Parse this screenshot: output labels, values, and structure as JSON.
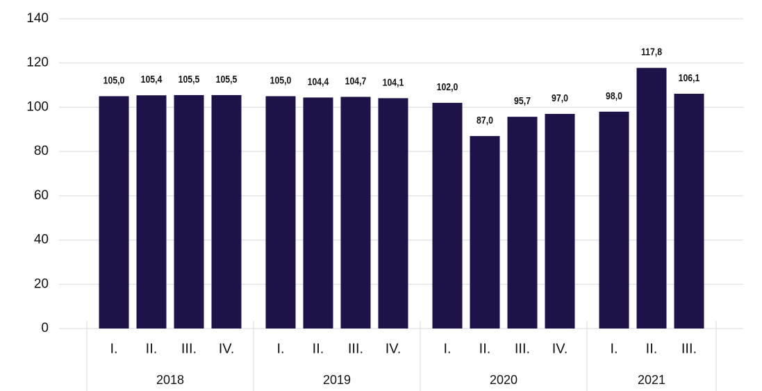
{
  "chart_data": {
    "type": "bar",
    "color": "#1e1248",
    "ylim": [
      0,
      140
    ],
    "yticks": [
      0,
      20,
      40,
      60,
      80,
      100,
      120,
      140
    ],
    "grid": true,
    "groups": [
      {
        "name": "2018",
        "categories": [
          "I.",
          "II.",
          "III.",
          "IV."
        ],
        "values": [
          105.0,
          105.4,
          105.5,
          105.5
        ],
        "value_labels": [
          "105,0",
          "105,4",
          "105,5",
          "105,5"
        ]
      },
      {
        "name": "2019",
        "categories": [
          "I.",
          "II.",
          "III.",
          "IV."
        ],
        "values": [
          105.0,
          104.4,
          104.7,
          104.1
        ],
        "value_labels": [
          "105,0",
          "104,4",
          "104,7",
          "104,1"
        ]
      },
      {
        "name": "2020",
        "categories": [
          "I.",
          "II.",
          "III.",
          "IV."
        ],
        "values": [
          102.0,
          87.0,
          95.7,
          97.0
        ],
        "value_labels": [
          "102,0",
          "87,0",
          "95,7",
          "97,0"
        ]
      },
      {
        "name": "2021",
        "categories": [
          "I.",
          "II.",
          "III."
        ],
        "values": [
          98.0,
          117.8,
          106.1
        ],
        "value_labels": [
          "98,0",
          "117,8",
          "106,1"
        ]
      }
    ]
  }
}
